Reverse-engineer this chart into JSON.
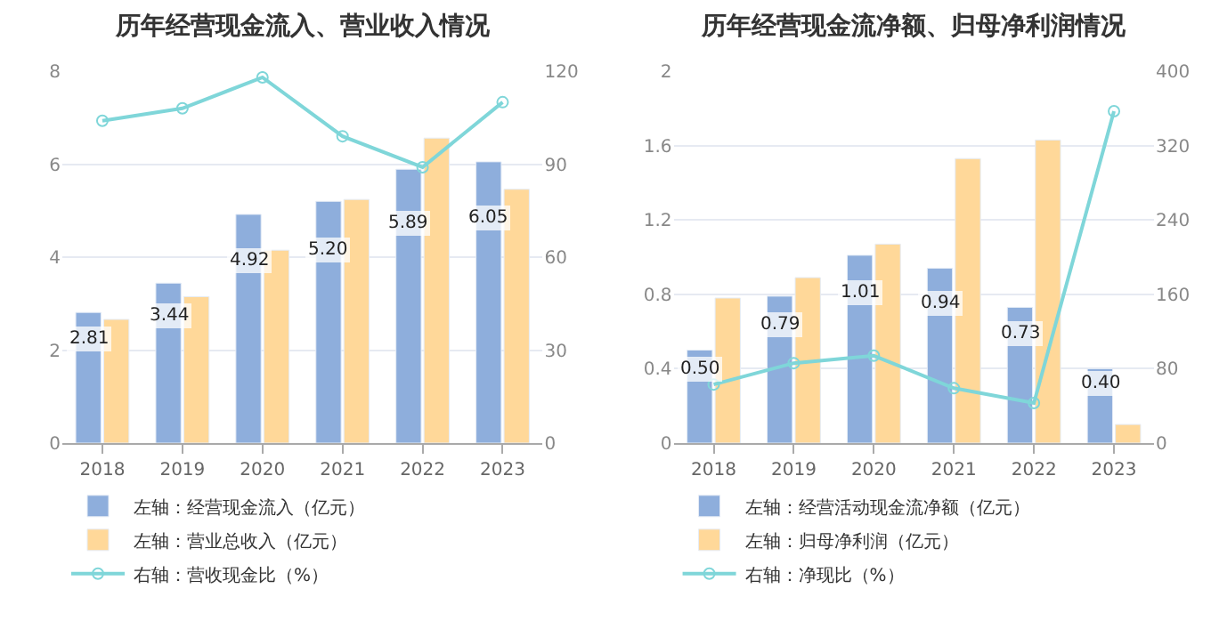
{
  "chart_data": [
    {
      "type": "bar",
      "title": "历年经营现金流入、营业收入情况",
      "categories": [
        "2018",
        "2019",
        "2020",
        "2021",
        "2022",
        "2023"
      ],
      "series": [
        {
          "name": "左轴：经营现金流入（亿元）",
          "color": "#8eaedc",
          "values": [
            2.81,
            3.44,
            4.92,
            5.2,
            5.89,
            6.05
          ],
          "value_labels": [
            "2.81",
            "3.44",
            "4.92",
            "5.20",
            "5.89",
            "6.05"
          ]
        },
        {
          "name": "左轴：营业总收入（亿元）",
          "color": "#ffd899",
          "values": [
            2.66,
            3.15,
            4.15,
            5.24,
            6.56,
            5.46
          ]
        },
        {
          "name": "右轴：营收现金比（%）",
          "color": "#7fd6d9",
          "type": "line",
          "axis": "y2",
          "marker": "circle",
          "values": [
            104,
            108,
            118,
            99,
            89,
            110
          ]
        }
      ],
      "ylim": [
        0,
        8
      ],
      "yticks": [
        0,
        2,
        4,
        6,
        8
      ],
      "y2lim": [
        0,
        120
      ],
      "y2ticks": [
        0,
        30,
        60,
        90,
        120
      ],
      "grid": "y",
      "legend": "bottom"
    },
    {
      "type": "bar",
      "title": "历年经营现金流净额、归母净利润情况",
      "categories": [
        "2018",
        "2019",
        "2020",
        "2021",
        "2022",
        "2023"
      ],
      "series": [
        {
          "name": "左轴：经营活动现金流净额（亿元）",
          "color": "#8eaedc",
          "values": [
            0.5,
            0.79,
            1.01,
            0.94,
            0.73,
            0.4
          ],
          "value_labels": [
            "0.50",
            "0.79",
            "1.01",
            "0.94",
            "0.73",
            "0.40"
          ]
        },
        {
          "name": "左轴：归母净利润（亿元）",
          "color": "#ffd899",
          "values": [
            0.78,
            0.89,
            1.07,
            1.53,
            1.63,
            0.1
          ]
        },
        {
          "name": "右轴：净现比（%）",
          "color": "#7fd6d9",
          "type": "line",
          "axis": "y2",
          "marker": "circle",
          "values": [
            63,
            86,
            94,
            59,
            43,
            357
          ]
        }
      ],
      "ylim": [
        0,
        2
      ],
      "yticks": [
        0,
        0.4,
        0.8,
        1.2,
        1.6,
        2
      ],
      "y2lim": [
        0,
        400
      ],
      "y2ticks": [
        0,
        80,
        160,
        240,
        320,
        400
      ],
      "grid": "y",
      "legend": "bottom"
    }
  ]
}
